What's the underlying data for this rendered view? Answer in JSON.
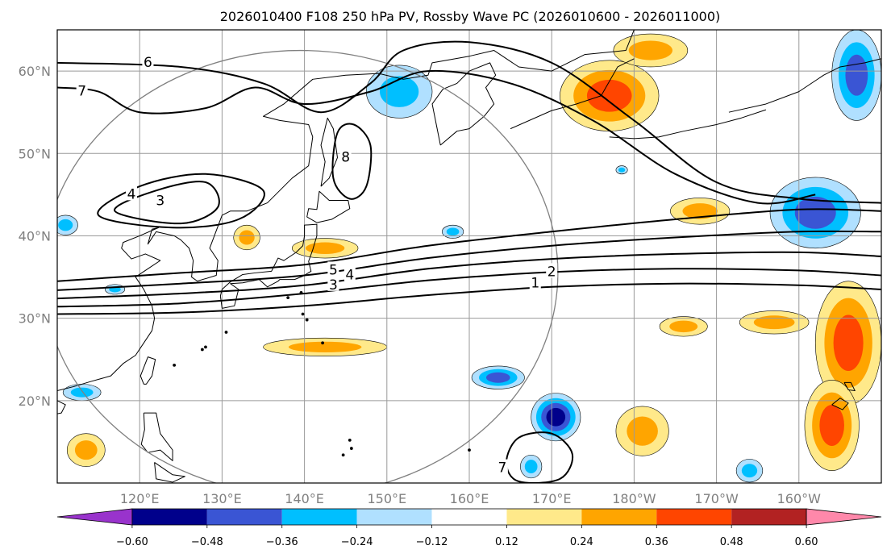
{
  "title": "2026010400 F108 250 hPa PV, Rossby Wave PC (2026010600 - 2026011000)",
  "map": {
    "lon_min": 110,
    "lon_max": 210,
    "lat_min": 10,
    "lat_max": 65,
    "lon_ticks": [
      {
        "lon": 120,
        "label": "120°E"
      },
      {
        "lon": 130,
        "label": "130°E"
      },
      {
        "lon": 140,
        "label": "140°E"
      },
      {
        "lon": 150,
        "label": "150°E"
      },
      {
        "lon": 160,
        "label": "160°E"
      },
      {
        "lon": 170,
        "label": "170°E"
      },
      {
        "lon": 180,
        "label": "180°W"
      },
      {
        "lon": 190,
        "label": "170°W"
      },
      {
        "lon": 200,
        "label": "160°W"
      }
    ],
    "lat_ticks": [
      {
        "lat": 60,
        "label": "60°N"
      },
      {
        "lat": 50,
        "label": "50°N"
      },
      {
        "lat": 40,
        "label": "40°N"
      },
      {
        "lat": 30,
        "label": "30°N"
      },
      {
        "lat": 20,
        "label": "20°N"
      }
    ],
    "circle": {
      "center_lon": 139.5,
      "center_lat": 35.5,
      "radius_deg": 25
    }
  },
  "pv_contours": [
    {
      "level": "1",
      "label_lon": 168,
      "label_lat": 34.2,
      "points": [
        [
          110,
          30.5
        ],
        [
          125,
          30.7
        ],
        [
          140,
          31.5
        ],
        [
          155,
          32.8
        ],
        [
          170,
          33.8
        ],
        [
          185,
          34.2
        ],
        [
          200,
          34.0
        ],
        [
          210,
          33.5
        ]
      ]
    },
    {
      "level": "2",
      "label_lon": 170,
      "label_lat": 35.6,
      "points": [
        [
          110,
          31.4
        ],
        [
          125,
          31.8
        ],
        [
          140,
          33.0
        ],
        [
          155,
          34.6
        ],
        [
          170,
          35.6
        ],
        [
          185,
          36.0
        ],
        [
          200,
          35.8
        ],
        [
          210,
          35.2
        ]
      ]
    },
    {
      "level": "3",
      "label_lon": 143.5,
      "label_lat": 34.0,
      "points": [
        [
          110,
          32.4
        ],
        [
          125,
          33.0
        ],
        [
          140,
          34.0
        ],
        [
          155,
          36.0
        ],
        [
          170,
          37.2
        ],
        [
          185,
          37.8
        ],
        [
          200,
          38.0
        ],
        [
          210,
          37.5
        ]
      ]
    },
    {
      "level": "4",
      "label_lon": 145.5,
      "label_lat": 35.2,
      "points": [
        [
          110,
          33.4
        ],
        [
          125,
          34.2
        ],
        [
          140,
          35.2
        ],
        [
          155,
          37.3
        ],
        [
          170,
          38.8
        ],
        [
          185,
          39.8
        ],
        [
          200,
          40.5
        ],
        [
          210,
          40.5
        ]
      ]
    },
    {
      "level": "5",
      "label_lon": 143.5,
      "label_lat": 35.8,
      "points": [
        [
          110,
          34.5
        ],
        [
          125,
          35.5
        ],
        [
          140,
          36.5
        ],
        [
          155,
          38.8
        ],
        [
          170,
          40.5
        ],
        [
          185,
          42.0
        ],
        [
          200,
          43.2
        ],
        [
          210,
          43.0
        ]
      ]
    },
    {
      "level": "6",
      "label_lon": 121,
      "label_lat": 61.0,
      "points": [
        [
          110,
          61.0
        ],
        [
          125,
          60.5
        ],
        [
          135,
          58.5
        ],
        [
          142,
          55.0
        ],
        [
          148,
          58.5
        ],
        [
          152,
          62.5
        ],
        [
          160,
          63.5
        ],
        [
          170,
          61.0
        ],
        [
          180,
          54.0
        ],
        [
          190,
          46.5
        ],
        [
          200,
          44.5
        ],
        [
          210,
          44.0
        ]
      ]
    },
    {
      "level": "7",
      "label_lon": 113,
      "label_lat": 57.5,
      "points": [
        [
          110,
          58.0
        ],
        [
          115,
          57.5
        ],
        [
          120,
          55.0
        ],
        [
          128,
          55.5
        ],
        [
          134,
          58.0
        ],
        [
          140,
          56.0
        ],
        [
          148,
          57.5
        ],
        [
          155,
          60.0
        ],
        [
          165,
          58.5
        ],
        [
          175,
          54.0
        ],
        [
          185,
          47.5
        ],
        [
          195,
          44.0
        ],
        [
          202,
          45.0
        ]
      ]
    },
    {
      "level": "8",
      "label_lon": 145,
      "label_lat": 49.5,
      "closed": true,
      "points": [
        [
          143.5,
          47.0
        ],
        [
          144,
          52.5
        ],
        [
          146,
          53.5
        ],
        [
          148,
          51.0
        ],
        [
          147.5,
          46.0
        ],
        [
          145.5,
          44.5
        ]
      ]
    },
    {
      "level": "4",
      "label_lon": 119,
      "label_lat": 45.0,
      "closed": true,
      "points": [
        [
          115,
          42.5
        ],
        [
          120,
          46.0
        ],
        [
          128,
          47.5
        ],
        [
          135,
          45.5
        ],
        [
          132,
          42.0
        ],
        [
          124,
          41.0
        ]
      ]
    },
    {
      "level": "3",
      "label_lon": 122.5,
      "label_lat": 44.2,
      "closed": true,
      "points": [
        [
          117,
          43.0
        ],
        [
          122,
          45.5
        ],
        [
          128,
          46.5
        ],
        [
          129.5,
          43.5
        ],
        [
          125,
          41.5
        ]
      ]
    },
    {
      "level": "7",
      "label_lon": 164,
      "label_lat": 11.8,
      "closed": true,
      "points": [
        [
          164.5,
          12.5
        ],
        [
          166,
          15.5
        ],
        [
          170,
          16.0
        ],
        [
          172.5,
          13.5
        ],
        [
          171,
          10.5
        ],
        [
          166,
          10.2
        ]
      ]
    }
  ],
  "anomaly_fields": [
    {
      "lon": 177.0,
      "lat": 57.0,
      "rx": 6.0,
      "ry": 4.3,
      "value": 0.38
    },
    {
      "lon": 182.0,
      "lat": 62.5,
      "rx": 4.5,
      "ry": 2.0,
      "value": 0.26
    },
    {
      "lon": 188.0,
      "lat": 43.0,
      "rx": 3.6,
      "ry": 1.6,
      "value": 0.27
    },
    {
      "lon": 206.0,
      "lat": 27.0,
      "rx": 4.0,
      "ry": 7.5,
      "value": 0.4
    },
    {
      "lon": 197.0,
      "lat": 29.5,
      "rx": 4.2,
      "ry": 1.4,
      "value": 0.26
    },
    {
      "lon": 204.0,
      "lat": 17.0,
      "rx": 3.3,
      "ry": 5.5,
      "value": 0.46
    },
    {
      "lon": 181.0,
      "lat": 16.3,
      "rx": 3.2,
      "ry": 3.0,
      "value": 0.34
    },
    {
      "lon": 186.0,
      "lat": 29.0,
      "rx": 2.9,
      "ry": 1.2,
      "value": 0.26
    },
    {
      "lon": 142.5,
      "lat": 26.5,
      "rx": 7.5,
      "ry": 1.1,
      "value": 0.26
    },
    {
      "lon": 142.5,
      "lat": 38.5,
      "rx": 4.0,
      "ry": 1.2,
      "value": 0.26
    },
    {
      "lon": 133.0,
      "lat": 39.8,
      "rx": 1.6,
      "ry": 1.5,
      "value": 0.26
    },
    {
      "lon": 113.5,
      "lat": 14.0,
      "rx": 2.3,
      "ry": 2.0,
      "value": 0.26
    },
    {
      "lon": 202.0,
      "lat": 42.8,
      "rx": 5.5,
      "ry": 4.3,
      "value": -0.36
    },
    {
      "lon": 151.5,
      "lat": 57.5,
      "rx": 4.0,
      "ry": 3.2,
      "value": -0.3
    },
    {
      "lon": 207.0,
      "lat": 59.5,
      "rx": 3.0,
      "ry": 5.5,
      "value": -0.38
    },
    {
      "lon": 170.5,
      "lat": 18.0,
      "rx": 3.0,
      "ry": 2.9,
      "value": -0.52
    },
    {
      "lon": 163.5,
      "lat": 22.8,
      "rx": 3.2,
      "ry": 1.4,
      "value": -0.42
    },
    {
      "lon": 167.5,
      "lat": 12.0,
      "rx": 1.3,
      "ry": 1.4,
      "value": -0.3
    },
    {
      "lon": 194.0,
      "lat": 11.5,
      "rx": 1.6,
      "ry": 1.4,
      "value": -0.3
    },
    {
      "lon": 113.0,
      "lat": 21.0,
      "rx": 2.3,
      "ry": 1.0,
      "value": -0.3
    },
    {
      "lon": 117.0,
      "lat": 33.5,
      "rx": 1.2,
      "ry": 0.6,
      "value": -0.3
    },
    {
      "lon": 158.0,
      "lat": 40.5,
      "rx": 1.3,
      "ry": 0.8,
      "value": -0.3
    },
    {
      "lon": 111.0,
      "lat": 41.3,
      "rx": 1.5,
      "ry": 1.2,
      "value": -0.3
    },
    {
      "lon": 178.5,
      "lat": 48.0,
      "rx": 0.7,
      "ry": 0.5,
      "value": -0.3
    }
  ],
  "colorbar": {
    "levels": [
      "−0.60",
      "−0.48",
      "−0.36",
      "−0.24",
      "−0.12",
      "0.12",
      "0.24",
      "0.36",
      "0.48",
      "0.60"
    ],
    "under_color": "#9933cc",
    "over_color": "#ff88aa",
    "colors": [
      "#00008b",
      "#3a55d4",
      "#00bfff",
      "#b0e0ff",
      "#ffffff",
      "#ffe98a",
      "#ffa500",
      "#ff4500",
      "#b22222"
    ]
  }
}
